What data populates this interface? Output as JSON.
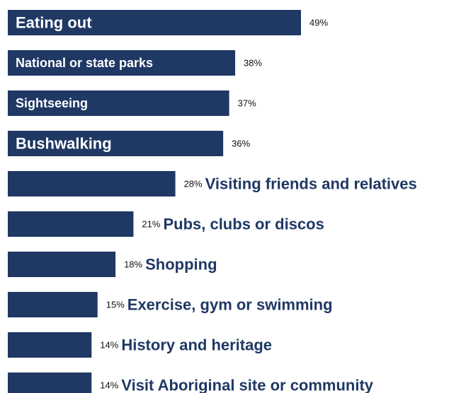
{
  "chart_data": {
    "type": "bar",
    "orientation": "horizontal",
    "categories": [
      "Eating out",
      "National or state parks",
      "Sightseeing",
      "Bushwalking",
      "Visiting friends and relatives",
      "Pubs, clubs or discos",
      "Shopping",
      "Exercise, gym or swimming",
      "History and heritage",
      "Visit Aboriginal site or community"
    ],
    "values": [
      49,
      38,
      37,
      36,
      28,
      21,
      18,
      15,
      14,
      14
    ],
    "value_labels": [
      "49%",
      "38%",
      "37%",
      "36%",
      "28%",
      "21%",
      "18%",
      "15%",
      "14%",
      "14%"
    ],
    "label_placement": [
      "inside",
      "inside",
      "inside",
      "inside",
      "outside",
      "outside",
      "outside",
      "outside",
      "outside",
      "outside"
    ],
    "bar_color": "#1f3864",
    "label_inside_color": "#ffffff",
    "label_outside_color": "#1f3864",
    "title": "",
    "xlabel": "",
    "ylabel": "",
    "xlim": [
      0,
      49
    ],
    "grid": false,
    "legend": "none"
  }
}
